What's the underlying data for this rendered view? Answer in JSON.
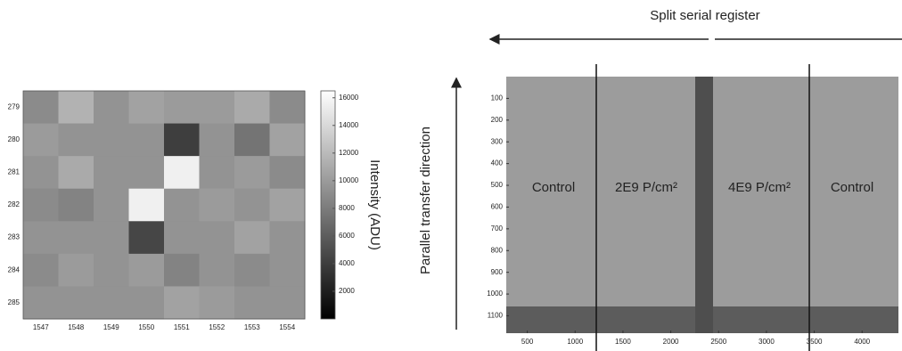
{
  "chart_data": [
    {
      "type": "heatmap",
      "x_categories": [
        "1547",
        "1548",
        "1549",
        "1550",
        "1551",
        "1552",
        "1553",
        "1554"
      ],
      "y_categories": [
        "279",
        "280",
        "281",
        "282",
        "283",
        "284",
        "285"
      ],
      "values": [
        [
          9000,
          11500,
          9500,
          10500,
          10000,
          10000,
          11000,
          9000
        ],
        [
          10000,
          9500,
          9500,
          9500,
          4000,
          9500,
          7500,
          10500
        ],
        [
          9500,
          11000,
          9500,
          9500,
          15500,
          9500,
          10000,
          9000
        ],
        [
          9000,
          8500,
          9500,
          15500,
          9500,
          10000,
          9500,
          10500
        ],
        [
          9500,
          9500,
          9500,
          4500,
          9500,
          9500,
          10500,
          9500
        ],
        [
          9000,
          10000,
          9500,
          10000,
          8500,
          9500,
          9000,
          9500
        ],
        [
          9500,
          9500,
          9500,
          9500,
          10500,
          10000,
          9500,
          9500
        ]
      ],
      "colorbar_label": "Intensity (ADU)",
      "clim": [
        0,
        16500
      ],
      "cticks": [
        2000,
        4000,
        6000,
        8000,
        10000,
        12000,
        14000,
        16000
      ]
    },
    {
      "type": "image",
      "title": "Split serial register",
      "ylabel": "Parallel transfer direction",
      "xlim": [
        280,
        4380
      ],
      "ylim": [
        0,
        1180
      ],
      "y_inverted": true,
      "xticks": [
        500,
        1000,
        1500,
        2000,
        2500,
        3000,
        3500,
        4000
      ],
      "yticks": [
        100,
        200,
        300,
        400,
        500,
        600,
        700,
        800,
        900,
        1000,
        1100
      ],
      "annotations": [
        "Control",
        "2E9 P/cm²",
        "4E9 P/cm²",
        "Control"
      ]
    }
  ]
}
